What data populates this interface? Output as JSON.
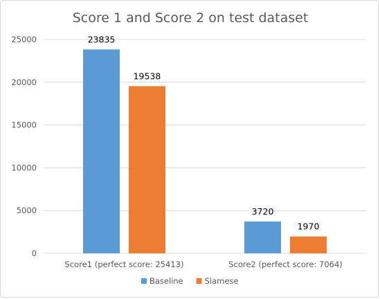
{
  "chart_data": {
    "type": "bar",
    "title": "Score 1 and Score 2 on test dataset",
    "categories": [
      "Score1 (perfect score: 25413)",
      "Score2 (perfect score: 7064)"
    ],
    "series": [
      {
        "name": "Baseline",
        "values": [
          23835,
          3720
        ],
        "color": "#5b9bd5"
      },
      {
        "name": "Siamese",
        "values": [
          19538,
          1970
        ],
        "color": "#ed7d31"
      }
    ],
    "ylim": [
      0,
      25000
    ],
    "yticks": [
      "0",
      "5000",
      "10000",
      "15000",
      "20000",
      "25000"
    ],
    "grid": true,
    "legend_position": "bottom"
  }
}
